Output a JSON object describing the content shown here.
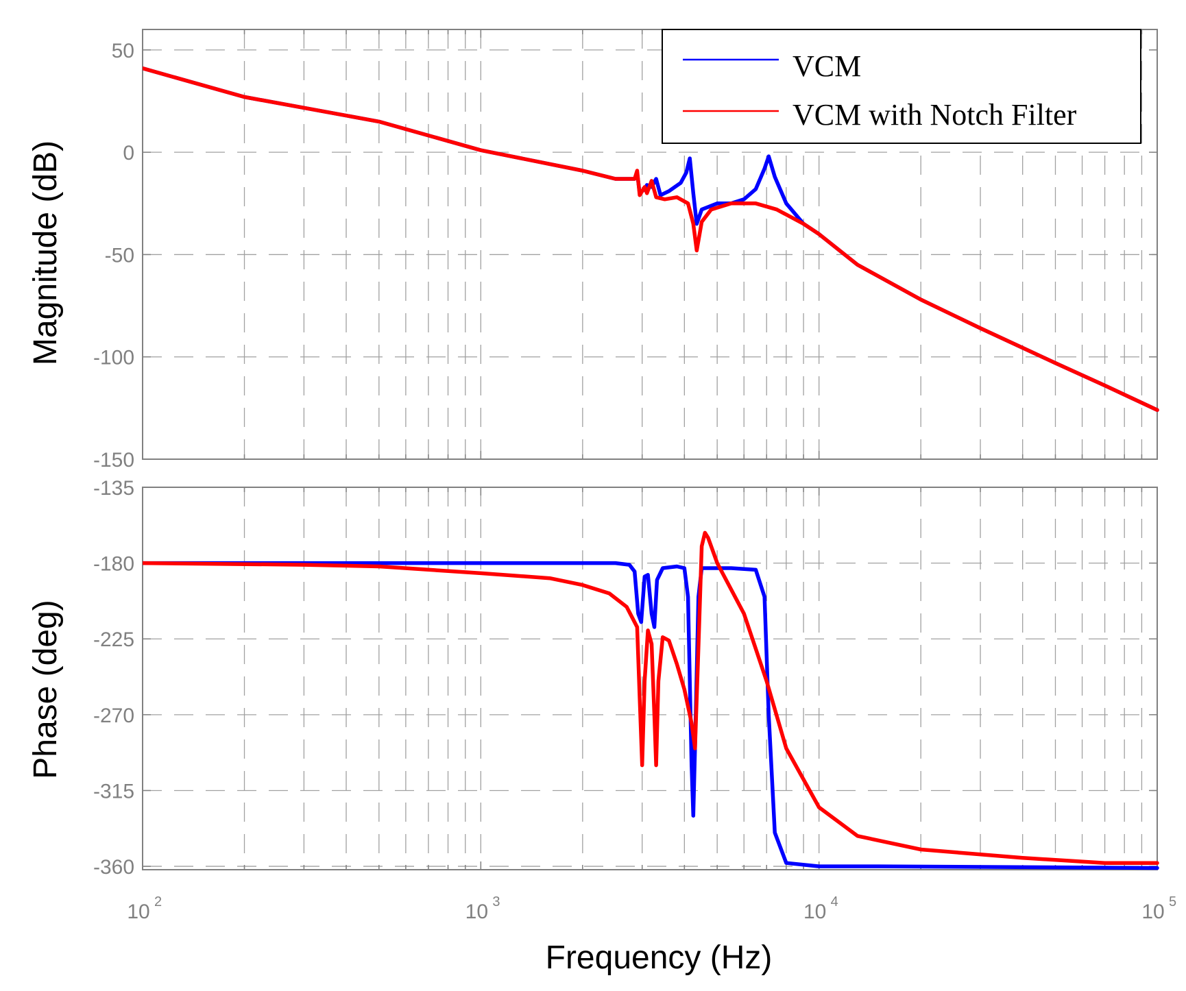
{
  "chart_data": {
    "type": "line",
    "title": "",
    "xlabel": "Frequency  (Hz)",
    "xscale": "log",
    "xlim": [
      100,
      100000
    ],
    "x_ticks": [
      {
        "base": "10",
        "exp": "2"
      },
      {
        "base": "10",
        "exp": "3"
      },
      {
        "base": "10",
        "exp": "4"
      },
      {
        "base": "10",
        "exp": "5"
      }
    ],
    "legend": {
      "placement": "top-right",
      "entries": [
        "VCM",
        "VCM with Notch Filter"
      ]
    },
    "colors": {
      "VCM": "#0000ff",
      "VCM with Notch Filter": "#ff0000"
    },
    "subplots": [
      {
        "name": "magnitude",
        "ylabel": "Magnitude (dB)",
        "ylim": [
          -150,
          60
        ],
        "yticks": [
          "50",
          "0",
          "-50",
          "-100",
          "-150"
        ],
        "series": [
          {
            "name": "VCM",
            "points": [
              [
                100,
                41
              ],
              [
                200,
                27
              ],
              [
                500,
                15
              ],
              [
                1000,
                1
              ],
              [
                2000,
                -9
              ],
              [
                2500,
                -13
              ],
              [
                2850,
                -13
              ],
              [
                2900,
                -10
              ],
              [
                2950,
                -20
              ],
              [
                3050,
                -18
              ],
              [
                3100,
                -16
              ],
              [
                3200,
                -17
              ],
              [
                3300,
                -13
              ],
              [
                3400,
                -21
              ],
              [
                3600,
                -19
              ],
              [
                3900,
                -15
              ],
              [
                4050,
                -10
              ],
              [
                4150,
                -3
              ],
              [
                4250,
                -20
              ],
              [
                4350,
                -35
              ],
              [
                4500,
                -28
              ],
              [
                5000,
                -25
              ],
              [
                5500,
                -25
              ],
              [
                6000,
                -23
              ],
              [
                6500,
                -18
              ],
              [
                6900,
                -8
              ],
              [
                7100,
                -2
              ],
              [
                7400,
                -12
              ],
              [
                8000,
                -25
              ],
              [
                9000,
                -35
              ],
              [
                10000,
                -40
              ],
              [
                13000,
                -55
              ],
              [
                20000,
                -72
              ],
              [
                30000,
                -86
              ],
              [
                50000,
                -103
              ],
              [
                70000,
                -114
              ],
              [
                100000,
                -126
              ]
            ]
          },
          {
            "name": "VCM with Notch Filter",
            "points": [
              [
                100,
                41
              ],
              [
                200,
                27
              ],
              [
                500,
                15
              ],
              [
                1000,
                1
              ],
              [
                2000,
                -9
              ],
              [
                2500,
                -13
              ],
              [
                2850,
                -13
              ],
              [
                2900,
                -9
              ],
              [
                2950,
                -21
              ],
              [
                3050,
                -17
              ],
              [
                3100,
                -20
              ],
              [
                3200,
                -14
              ],
              [
                3300,
                -22
              ],
              [
                3500,
                -23
              ],
              [
                3800,
                -22
              ],
              [
                4100,
                -25
              ],
              [
                4250,
                -35
              ],
              [
                4350,
                -48
              ],
              [
                4500,
                -34
              ],
              [
                4800,
                -28
              ],
              [
                5500,
                -25
              ],
              [
                6500,
                -25
              ],
              [
                7500,
                -28
              ],
              [
                9000,
                -35
              ],
              [
                10000,
                -40
              ],
              [
                13000,
                -55
              ],
              [
                20000,
                -72
              ],
              [
                30000,
                -86
              ],
              [
                50000,
                -103
              ],
              [
                70000,
                -114
              ],
              [
                100000,
                -126
              ]
            ]
          }
        ]
      },
      {
        "name": "phase",
        "ylabel": "Phase (deg)",
        "ylim": [
          -362,
          -135
        ],
        "yticks": [
          "-135",
          "-180",
          "-225",
          "-270",
          "-315",
          "-360"
        ],
        "series": [
          {
            "name": "VCM",
            "points": [
              [
                100,
                -180
              ],
              [
                2500,
                -180
              ],
              [
                2750,
                -181
              ],
              [
                2850,
                -185
              ],
              [
                2920,
                -210
              ],
              [
                2980,
                -215
              ],
              [
                3050,
                -188
              ],
              [
                3120,
                -187
              ],
              [
                3200,
                -210
              ],
              [
                3260,
                -218
              ],
              [
                3320,
                -190
              ],
              [
                3450,
                -183
              ],
              [
                3800,
                -182
              ],
              [
                4000,
                -183
              ],
              [
                4100,
                -200
              ],
              [
                4200,
                -300
              ],
              [
                4250,
                -330
              ],
              [
                4300,
                -290
              ],
              [
                4400,
                -200
              ],
              [
                4500,
                -183
              ],
              [
                5500,
                -183
              ],
              [
                6500,
                -184
              ],
              [
                6900,
                -200
              ],
              [
                7100,
                -270
              ],
              [
                7400,
                -340
              ],
              [
                8000,
                -358
              ],
              [
                10000,
                -360
              ],
              [
                15000,
                -360
              ],
              [
                100000,
                -361
              ]
            ]
          },
          {
            "name": "VCM with Notch Filter",
            "points": [
              [
                100,
                -180
              ],
              [
                300,
                -181
              ],
              [
                500,
                -182
              ],
              [
                1000,
                -186
              ],
              [
                1600,
                -189
              ],
              [
                2000,
                -193
              ],
              [
                2400,
                -198
              ],
              [
                2700,
                -206
              ],
              [
                2900,
                -218
              ],
              [
                2950,
                -260
              ],
              [
                3000,
                -300
              ],
              [
                3050,
                -250
              ],
              [
                3120,
                -220
              ],
              [
                3200,
                -228
              ],
              [
                3260,
                -270
              ],
              [
                3300,
                -300
              ],
              [
                3350,
                -250
              ],
              [
                3450,
                -224
              ],
              [
                3600,
                -226
              ],
              [
                3800,
                -240
              ],
              [
                4000,
                -255
              ],
              [
                4200,
                -275
              ],
              [
                4300,
                -290
              ],
              [
                4400,
                -230
              ],
              [
                4500,
                -170
              ],
              [
                4600,
                -162
              ],
              [
                4700,
                -165
              ],
              [
                5000,
                -180
              ],
              [
                6000,
                -210
              ],
              [
                7000,
                -250
              ],
              [
                8000,
                -290
              ],
              [
                10000,
                -325
              ],
              [
                13000,
                -342
              ],
              [
                20000,
                -350
              ],
              [
                40000,
                -355
              ],
              [
                70000,
                -358
              ],
              [
                100000,
                -358
              ]
            ]
          }
        ]
      }
    ]
  }
}
